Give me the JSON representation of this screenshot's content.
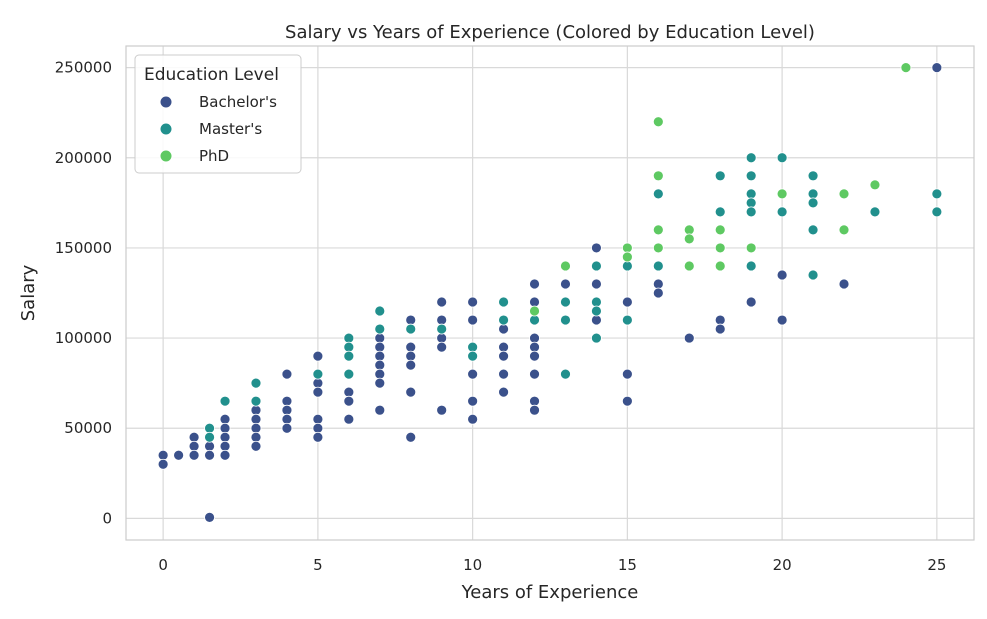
{
  "chart_data": {
    "type": "scatter",
    "title": "Salary vs Years of Experience (Colored by Education Level)",
    "xlabel": "Years of Experience",
    "ylabel": "Salary",
    "xlim": [
      -1.2,
      26.2
    ],
    "ylim": [
      -12000,
      262000
    ],
    "xticks": [
      0,
      5,
      10,
      15,
      20,
      25
    ],
    "yticks": [
      0,
      50000,
      100000,
      150000,
      200000,
      250000
    ],
    "grid": true,
    "legend": {
      "title": "Education Level",
      "position": "top-left"
    },
    "series": [
      {
        "name": "Bachelor's",
        "color": "#3b518b",
        "points": [
          [
            0,
            35000
          ],
          [
            0,
            30000
          ],
          [
            0.5,
            35000
          ],
          [
            1,
            45000
          ],
          [
            1,
            40000
          ],
          [
            1,
            35000
          ],
          [
            1.5,
            45000
          ],
          [
            1.5,
            40000
          ],
          [
            1.5,
            35000
          ],
          [
            1.5,
            550
          ],
          [
            2,
            55000
          ],
          [
            2,
            50000
          ],
          [
            2,
            45000
          ],
          [
            2,
            40000
          ],
          [
            2,
            35000
          ],
          [
            3,
            65000
          ],
          [
            3,
            60000
          ],
          [
            3,
            55000
          ],
          [
            3,
            50000
          ],
          [
            3,
            45000
          ],
          [
            3,
            40000
          ],
          [
            4,
            80000
          ],
          [
            4,
            65000
          ],
          [
            4,
            60000
          ],
          [
            4,
            55000
          ],
          [
            4,
            50000
          ],
          [
            5,
            90000
          ],
          [
            5,
            75000
          ],
          [
            5,
            70000
          ],
          [
            5,
            55000
          ],
          [
            5,
            50000
          ],
          [
            5,
            45000
          ],
          [
            6,
            70000
          ],
          [
            6,
            65000
          ],
          [
            6,
            55000
          ],
          [
            7,
            100000
          ],
          [
            7,
            95000
          ],
          [
            7,
            90000
          ],
          [
            7,
            85000
          ],
          [
            7,
            80000
          ],
          [
            7,
            75000
          ],
          [
            7,
            60000
          ],
          [
            8,
            110000
          ],
          [
            8,
            95000
          ],
          [
            8,
            90000
          ],
          [
            8,
            85000
          ],
          [
            8,
            70000
          ],
          [
            8,
            45000
          ],
          [
            9,
            120000
          ],
          [
            9,
            110000
          ],
          [
            9,
            100000
          ],
          [
            9,
            95000
          ],
          [
            9,
            60000
          ],
          [
            10,
            120000
          ],
          [
            10,
            110000
          ],
          [
            10,
            95000
          ],
          [
            10,
            80000
          ],
          [
            10,
            65000
          ],
          [
            10,
            55000
          ],
          [
            11,
            105000
          ],
          [
            11,
            95000
          ],
          [
            11,
            90000
          ],
          [
            11,
            80000
          ],
          [
            11,
            70000
          ],
          [
            12,
            130000
          ],
          [
            12,
            120000
          ],
          [
            12,
            100000
          ],
          [
            12,
            95000
          ],
          [
            12,
            90000
          ],
          [
            12,
            80000
          ],
          [
            12,
            65000
          ],
          [
            12,
            60000
          ],
          [
            13,
            130000
          ],
          [
            14,
            150000
          ],
          [
            14,
            130000
          ],
          [
            14,
            110000
          ],
          [
            15,
            120000
          ],
          [
            15,
            80000
          ],
          [
            15,
            65000
          ],
          [
            16,
            130000
          ],
          [
            16,
            125000
          ],
          [
            17,
            100000
          ],
          [
            18,
            110000
          ],
          [
            18,
            105000
          ],
          [
            19,
            120000
          ],
          [
            20,
            135000
          ],
          [
            20,
            110000
          ],
          [
            22,
            130000
          ],
          [
            25,
            250000
          ]
        ]
      },
      {
        "name": "Master's",
        "color": "#21908d",
        "points": [
          [
            1.5,
            50000
          ],
          [
            1.5,
            45000
          ],
          [
            2,
            65000
          ],
          [
            3,
            75000
          ],
          [
            3,
            65000
          ],
          [
            5,
            80000
          ],
          [
            6,
            100000
          ],
          [
            6,
            95000
          ],
          [
            6,
            90000
          ],
          [
            6,
            80000
          ],
          [
            7,
            115000
          ],
          [
            7,
            105000
          ],
          [
            8,
            105000
          ],
          [
            9,
            105000
          ],
          [
            10,
            95000
          ],
          [
            10,
            90000
          ],
          [
            11,
            120000
          ],
          [
            11,
            110000
          ],
          [
            12,
            110000
          ],
          [
            13,
            120000
          ],
          [
            13,
            110000
          ],
          [
            13,
            80000
          ],
          [
            14,
            140000
          ],
          [
            14,
            120000
          ],
          [
            14,
            115000
          ],
          [
            14,
            100000
          ],
          [
            15,
            140000
          ],
          [
            15,
            110000
          ],
          [
            16,
            180000
          ],
          [
            16,
            140000
          ],
          [
            18,
            190000
          ],
          [
            18,
            170000
          ],
          [
            18,
            140000
          ],
          [
            19,
            200000
          ],
          [
            19,
            190000
          ],
          [
            19,
            180000
          ],
          [
            19,
            175000
          ],
          [
            19,
            170000
          ],
          [
            19,
            140000
          ],
          [
            20,
            200000
          ],
          [
            20,
            170000
          ],
          [
            21,
            190000
          ],
          [
            21,
            180000
          ],
          [
            21,
            175000
          ],
          [
            21,
            160000
          ],
          [
            21,
            135000
          ],
          [
            23,
            170000
          ],
          [
            25,
            180000
          ],
          [
            25,
            170000
          ]
        ]
      },
      {
        "name": "PhD",
        "color": "#5ec962",
        "points": [
          [
            12,
            115000
          ],
          [
            13,
            140000
          ],
          [
            15,
            150000
          ],
          [
            15,
            145000
          ],
          [
            16,
            220000
          ],
          [
            16,
            190000
          ],
          [
            16,
            160000
          ],
          [
            16,
            150000
          ],
          [
            17,
            160000
          ],
          [
            17,
            155000
          ],
          [
            17,
            140000
          ],
          [
            18,
            160000
          ],
          [
            18,
            150000
          ],
          [
            18,
            140000
          ],
          [
            19,
            150000
          ],
          [
            20,
            180000
          ],
          [
            22,
            180000
          ],
          [
            22,
            160000
          ],
          [
            23,
            185000
          ],
          [
            24,
            250000
          ]
        ]
      }
    ]
  }
}
